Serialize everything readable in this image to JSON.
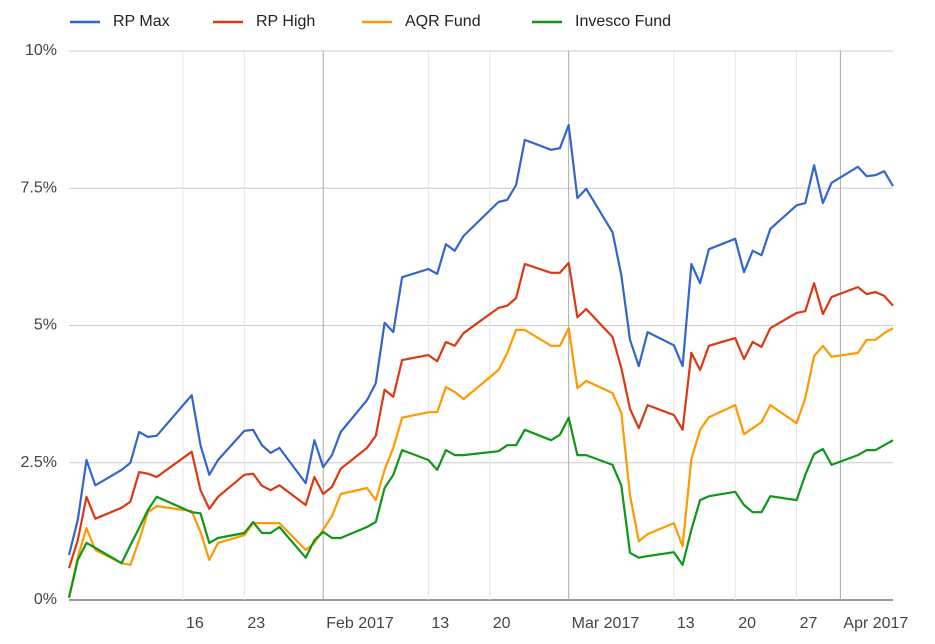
{
  "chart_data": {
    "type": "line",
    "x": [
      "2017-01-03",
      "2017-01-04",
      "2017-01-05",
      "2017-01-06",
      "2017-01-09",
      "2017-01-10",
      "2017-01-11",
      "2017-01-12",
      "2017-01-13",
      "2017-01-17",
      "2017-01-18",
      "2017-01-19",
      "2017-01-20",
      "2017-01-23",
      "2017-01-24",
      "2017-01-25",
      "2017-01-26",
      "2017-01-27",
      "2017-01-30",
      "2017-01-31",
      "2017-02-01",
      "2017-02-02",
      "2017-02-03",
      "2017-02-06",
      "2017-02-07",
      "2017-02-08",
      "2017-02-09",
      "2017-02-10",
      "2017-02-13",
      "2017-02-14",
      "2017-02-15",
      "2017-02-16",
      "2017-02-17",
      "2017-02-21",
      "2017-02-22",
      "2017-02-23",
      "2017-02-24",
      "2017-02-27",
      "2017-02-28",
      "2017-03-01",
      "2017-03-02",
      "2017-03-03",
      "2017-03-06",
      "2017-03-07",
      "2017-03-08",
      "2017-03-09",
      "2017-03-10",
      "2017-03-13",
      "2017-03-14",
      "2017-03-15",
      "2017-03-16",
      "2017-03-17",
      "2017-03-20",
      "2017-03-21",
      "2017-03-22",
      "2017-03-23",
      "2017-03-24",
      "2017-03-27",
      "2017-03-28",
      "2017-03-29",
      "2017-03-30",
      "2017-03-31",
      "2017-04-03",
      "2017-04-04",
      "2017-04-05",
      "2017-04-06",
      "2017-04-07"
    ],
    "series": [
      {
        "name": "RP Max",
        "color": "#3366cc",
        "values": [
          0.82,
          1.46,
          2.55,
          2.09,
          2.37,
          2.5,
          3.06,
          2.97,
          2.99,
          3.73,
          2.82,
          2.28,
          2.55,
          3.08,
          3.1,
          2.82,
          2.68,
          2.77,
          2.13,
          2.91,
          2.42,
          2.64,
          3.06,
          3.64,
          3.95,
          5.05,
          4.88,
          5.88,
          6.03,
          5.94,
          6.48,
          6.36,
          6.63,
          7.25,
          7.29,
          7.56,
          8.38,
          8.2,
          8.23,
          8.65,
          7.32,
          7.49,
          6.7,
          5.92,
          4.74,
          4.26,
          4.88,
          4.64,
          4.26,
          6.12,
          5.77,
          6.39,
          6.58,
          5.97,
          6.36,
          6.28,
          6.76,
          7.19,
          7.23,
          7.92,
          7.23,
          7.6,
          7.89,
          7.72,
          7.74,
          7.81,
          7.54
        ]
      },
      {
        "name": "RP High",
        "color": "#dc3912",
        "values": [
          0.58,
          1.09,
          1.88,
          1.48,
          1.68,
          1.79,
          2.33,
          2.3,
          2.24,
          2.7,
          2.0,
          1.66,
          1.88,
          2.28,
          2.3,
          2.08,
          2.0,
          2.09,
          1.73,
          2.24,
          1.93,
          2.06,
          2.39,
          2.77,
          2.99,
          3.83,
          3.7,
          4.37,
          4.46,
          4.35,
          4.7,
          4.63,
          4.86,
          5.32,
          5.36,
          5.5,
          6.12,
          5.96,
          5.96,
          6.14,
          5.15,
          5.3,
          4.79,
          4.23,
          3.48,
          3.13,
          3.55,
          3.37,
          3.1,
          4.5,
          4.19,
          4.63,
          4.77,
          4.39,
          4.7,
          4.61,
          4.95,
          5.23,
          5.26,
          5.77,
          5.21,
          5.52,
          5.7,
          5.57,
          5.61,
          5.54,
          5.36
        ]
      },
      {
        "name": "AQR Fund",
        "color": "#ff9900",
        "values": [
          0.04,
          0.78,
          1.31,
          0.91,
          0.67,
          0.64,
          1.09,
          1.6,
          1.71,
          1.62,
          1.24,
          0.73,
          1.04,
          1.18,
          1.4,
          1.4,
          1.4,
          1.4,
          0.91,
          1.04,
          1.28,
          1.53,
          1.93,
          2.04,
          1.82,
          2.37,
          2.77,
          3.32,
          3.42,
          3.42,
          3.88,
          3.79,
          3.66,
          4.19,
          4.5,
          4.92,
          4.92,
          4.63,
          4.63,
          4.95,
          3.86,
          3.99,
          3.77,
          3.41,
          1.91,
          1.07,
          1.2,
          1.4,
          0.98,
          2.57,
          3.1,
          3.33,
          3.55,
          3.02,
          3.13,
          3.24,
          3.55,
          3.22,
          3.68,
          4.44,
          4.63,
          4.43,
          4.5,
          4.74,
          4.74,
          4.86,
          4.95
        ]
      },
      {
        "name": "Invesco Fund",
        "color": "#109618",
        "values": [
          0.04,
          0.73,
          1.04,
          0.95,
          0.67,
          1.0,
          1.31,
          1.64,
          1.88,
          1.6,
          1.58,
          1.04,
          1.13,
          1.22,
          1.42,
          1.22,
          1.22,
          1.33,
          0.77,
          1.09,
          1.24,
          1.13,
          1.13,
          1.33,
          1.42,
          2.04,
          2.28,
          2.73,
          2.55,
          2.37,
          2.73,
          2.64,
          2.64,
          2.71,
          2.82,
          2.82,
          3.1,
          2.91,
          3.01,
          3.32,
          2.64,
          2.64,
          2.46,
          2.09,
          0.86,
          0.77,
          0.8,
          0.87,
          0.64,
          1.28,
          1.82,
          1.89,
          1.97,
          1.73,
          1.6,
          1.6,
          1.89,
          1.82,
          2.28,
          2.66,
          2.75,
          2.46,
          2.64,
          2.73,
          2.73,
          2.82,
          2.91
        ]
      }
    ],
    "xlim": [
      "2017-01-03",
      "2017-04-07"
    ],
    "xticks": [
      {
        "value": "2017-01-16",
        "label": "16"
      },
      {
        "value": "2017-01-23",
        "label": "23"
      },
      {
        "value": "2017-02-01",
        "label": "Feb 2017"
      },
      {
        "value": "2017-02-13",
        "label": "13"
      },
      {
        "value": "2017-02-20",
        "label": "20"
      },
      {
        "value": "2017-03-01",
        "label": "Mar 2017"
      },
      {
        "value": "2017-03-13",
        "label": "13"
      },
      {
        "value": "2017-03-20",
        "label": "20"
      },
      {
        "value": "2017-03-27",
        "label": "27"
      },
      {
        "value": "2017-04-01",
        "label": "Apr 2017"
      }
    ],
    "ylim": [
      0,
      10
    ],
    "yticks": [
      {
        "value": 0,
        "label": "0%"
      },
      {
        "value": 2.5,
        "label": "2.5%"
      },
      {
        "value": 5,
        "label": "5%"
      },
      {
        "value": 7.5,
        "label": "7.5%"
      },
      {
        "value": 10,
        "label": "10%"
      }
    ],
    "grid": true,
    "legend": "top"
  }
}
